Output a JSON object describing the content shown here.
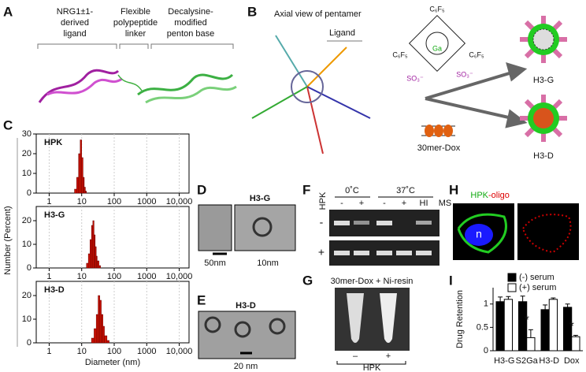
{
  "panel_labels": [
    "A",
    "B",
    "C",
    "D",
    "E",
    "F",
    "G",
    "H",
    "I"
  ],
  "panel_a": {
    "ligand": [
      "NRG1±1-",
      "derived",
      "ligand"
    ],
    "linker": [
      "Flexible",
      "polypeptide",
      "linker"
    ],
    "penton": [
      "Decalysine-",
      "modified",
      "penton base"
    ]
  },
  "panel_b": {
    "title": "Axial view of pentamer",
    "ligand": "Ligand",
    "substituents": [
      "C₆F₅",
      "C₆F₅",
      "C₆F₅"
    ],
    "metal": "Ga",
    "sulfonates": [
      "SO₃⁻",
      "SO₃⁻"
    ],
    "dox": "30mer-Dox",
    "products": [
      "H3-G",
      "H3-D"
    ]
  },
  "panel_c": {
    "ylabel": "Number (Percent)",
    "xlabel": "Diameter (nm)"
  },
  "panel_d": {
    "title": "H3-G",
    "scales": [
      "50nm",
      "10nm"
    ]
  },
  "panel_e": {
    "title": "H3-D",
    "scale": "20 nm"
  },
  "panel_f": {
    "sample": "HPK",
    "temps": [
      "0˚C",
      "37˚C"
    ],
    "lanes": [
      "-",
      "+",
      "-",
      "+",
      "HI",
      "MS"
    ],
    "rows": [
      "-",
      "+"
    ]
  },
  "panel_g": {
    "title": "30mer-Dox + Ni-resin",
    "tubes": [
      "–",
      "+"
    ],
    "sample": "HPK"
  },
  "panel_h": {
    "green": "HPK",
    "red": "-oligo",
    "nucleus": "n"
  },
  "chart_data": [
    {
      "type": "histogram",
      "title": "HPK",
      "color": "#cc1100",
      "log_x": true,
      "bins": [
        6,
        7,
        8,
        9,
        10,
        11,
        12,
        13,
        14
      ],
      "counts": [
        2,
        8,
        20,
        27,
        18,
        8,
        3,
        1
      ],
      "xlim": [
        0.4,
        20000
      ],
      "xticks": [
        1,
        10,
        100,
        1000,
        {
          "value": 10000,
          "label": "10,000"
        }
      ],
      "ylim": [
        0,
        30
      ],
      "yticks": [
        0,
        10,
        20,
        30
      ]
    },
    {
      "type": "histogram",
      "title": "H3-G",
      "color": "#cc1100",
      "log_x": true,
      "bins": [
        14,
        16,
        18,
        20,
        22,
        24,
        26,
        28,
        30,
        34,
        38
      ],
      "counts": [
        2,
        6,
        12,
        18,
        20,
        14,
        9,
        5,
        3,
        1
      ],
      "xlim": [
        0.4,
        20000
      ],
      "xticks": [
        1,
        10,
        100,
        1000,
        {
          "value": 10000,
          "label": "10,000"
        }
      ],
      "ylim": [
        0,
        26
      ],
      "yticks": [
        0,
        10,
        20
      ]
    },
    {
      "type": "histogram",
      "title": "H3-D",
      "color": "#cc1100",
      "log_x": true,
      "bins": [
        20,
        24,
        28,
        32,
        36,
        40,
        45,
        50,
        60,
        70
      ],
      "counts": [
        2,
        6,
        12,
        20,
        18,
        12,
        7,
        3,
        1
      ],
      "xlim": [
        0.4,
        20000
      ],
      "xticks": [
        1,
        10,
        100,
        1000,
        {
          "value": 10000,
          "label": "10,000"
        }
      ],
      "ylim": [
        0,
        26
      ],
      "yticks": [
        0,
        10,
        20
      ]
    },
    {
      "type": "bar",
      "ylabel": "Drug Retention",
      "categories": [
        "H3-G",
        "S2Ga",
        "H3-D",
        "Dox"
      ],
      "series": [
        {
          "name": "(-) serum",
          "color": "#000000",
          "values": [
            1.05,
            1.05,
            0.88,
            0.93
          ],
          "errors": [
            0.1,
            0.12,
            0.1,
            0.07
          ]
        },
        {
          "name": "(+) serum",
          "color": "#ffffff",
          "values": [
            1.1,
            0.28,
            1.1,
            0.3
          ],
          "errors": [
            0.06,
            0.17,
            0.03,
            0.03
          ]
        }
      ],
      "annotations": [
        "*",
        "*"
      ],
      "legend": "upper right",
      "ylim": [
        0,
        1.35
      ],
      "yticks": [
        0,
        0.5,
        1
      ]
    }
  ]
}
